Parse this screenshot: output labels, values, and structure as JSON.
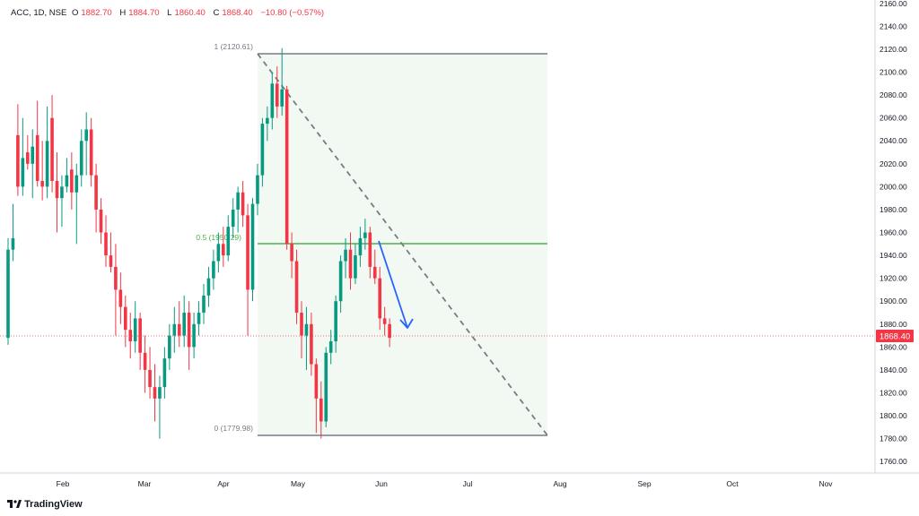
{
  "header": {
    "symbol": "ACC, 1D, NSE",
    "open_label": "O",
    "open": "1882.70",
    "high_label": "H",
    "high": "1884.70",
    "low_label": "L",
    "low": "1860.40",
    "close_label": "C",
    "close": "1868.40",
    "change": "−10.80 (−0.57%)"
  },
  "branding": {
    "logo_text": "TradingView"
  },
  "colors": {
    "up": "#089981",
    "down": "#f23645",
    "fib_zone": "#e8f5e9",
    "fib_line": "#4caf50",
    "arrow": "#2962ff",
    "price_tag": "#f23645"
  },
  "chart_data": {
    "type": "candlestick",
    "ylim": [
      1750,
      2163
    ],
    "y_ticks": [
      1760,
      1780,
      1800,
      1820,
      1840,
      1860,
      1880,
      1900,
      1920,
      1940,
      1960,
      1980,
      2000,
      2020,
      2040,
      2060,
      2080,
      2100,
      2120,
      2140,
      2160
    ],
    "x_ticks": [
      "Feb",
      "Mar",
      "Apr",
      "May",
      "Jun",
      "Jul",
      "Aug",
      "Sep",
      "Oct",
      "Nov"
    ],
    "last_price": "1868.40",
    "fib_levels": [
      {
        "label": "1 (2120.61)",
        "value": 2120.61
      },
      {
        "label": "0.5 (1950.29)",
        "value": 1950.29
      },
      {
        "label": "0 (1779.98)",
        "value": 1779.98
      }
    ],
    "candles": [
      {
        "o": 1868,
        "h": 1955,
        "l": 1862,
        "c": 1945
      },
      {
        "o": 1945,
        "h": 1985,
        "l": 1935,
        "c": 1955
      },
      {
        "o": 2045,
        "h": 2072,
        "l": 1992,
        "c": 2000
      },
      {
        "o": 2000,
        "h": 2060,
        "l": 1992,
        "c": 2025
      },
      {
        "o": 2030,
        "h": 2045,
        "l": 2015,
        "c": 2020
      },
      {
        "o": 2020,
        "h": 2050,
        "l": 1990,
        "c": 2035
      },
      {
        "o": 2045,
        "h": 2075,
        "l": 2000,
        "c": 2005
      },
      {
        "o": 2005,
        "h": 2040,
        "l": 1988,
        "c": 2000
      },
      {
        "o": 2000,
        "h": 2070,
        "l": 1990,
        "c": 2040
      },
      {
        "o": 2060,
        "h": 2080,
        "l": 1995,
        "c": 2005
      },
      {
        "o": 2005,
        "h": 2030,
        "l": 1960,
        "c": 1990
      },
      {
        "o": 1990,
        "h": 2010,
        "l": 1965,
        "c": 2000
      },
      {
        "o": 2000,
        "h": 2025,
        "l": 1995,
        "c": 2010
      },
      {
        "o": 2015,
        "h": 2030,
        "l": 1980,
        "c": 1995
      },
      {
        "o": 1995,
        "h": 2020,
        "l": 1950,
        "c": 2010
      },
      {
        "o": 2010,
        "h": 2050,
        "l": 2000,
        "c": 2040
      },
      {
        "o": 2040,
        "h": 2065,
        "l": 2010,
        "c": 2050
      },
      {
        "o": 2050,
        "h": 2060,
        "l": 2000,
        "c": 2010
      },
      {
        "o": 2010,
        "h": 2020,
        "l": 1960,
        "c": 1980
      },
      {
        "o": 1980,
        "h": 1990,
        "l": 1950,
        "c": 1960
      },
      {
        "o": 1960,
        "h": 1975,
        "l": 1930,
        "c": 1940
      },
      {
        "o": 1940,
        "h": 1960,
        "l": 1925,
        "c": 1930
      },
      {
        "o": 1930,
        "h": 1950,
        "l": 1870,
        "c": 1910
      },
      {
        "o": 1910,
        "h": 1925,
        "l": 1880,
        "c": 1895
      },
      {
        "o": 1895,
        "h": 1905,
        "l": 1860,
        "c": 1875
      },
      {
        "o": 1875,
        "h": 1890,
        "l": 1850,
        "c": 1865
      },
      {
        "o": 1865,
        "h": 1900,
        "l": 1855,
        "c": 1885
      },
      {
        "o": 1885,
        "h": 1890,
        "l": 1840,
        "c": 1855
      },
      {
        "o": 1855,
        "h": 1870,
        "l": 1820,
        "c": 1840
      },
      {
        "o": 1840,
        "h": 1860,
        "l": 1815,
        "c": 1825
      },
      {
        "o": 1825,
        "h": 1845,
        "l": 1795,
        "c": 1815
      },
      {
        "o": 1815,
        "h": 1835,
        "l": 1780,
        "c": 1825
      },
      {
        "o": 1825,
        "h": 1860,
        "l": 1815,
        "c": 1850
      },
      {
        "o": 1850,
        "h": 1880,
        "l": 1840,
        "c": 1870
      },
      {
        "o": 1870,
        "h": 1895,
        "l": 1855,
        "c": 1880
      },
      {
        "o": 1880,
        "h": 1900,
        "l": 1860,
        "c": 1870
      },
      {
        "o": 1870,
        "h": 1905,
        "l": 1860,
        "c": 1890
      },
      {
        "o": 1890,
        "h": 1900,
        "l": 1840,
        "c": 1860
      },
      {
        "o": 1860,
        "h": 1890,
        "l": 1850,
        "c": 1880
      },
      {
        "o": 1880,
        "h": 1900,
        "l": 1870,
        "c": 1890
      },
      {
        "o": 1890,
        "h": 1915,
        "l": 1880,
        "c": 1905
      },
      {
        "o": 1905,
        "h": 1930,
        "l": 1895,
        "c": 1920
      },
      {
        "o": 1920,
        "h": 1945,
        "l": 1910,
        "c": 1935
      },
      {
        "o": 1935,
        "h": 1960,
        "l": 1925,
        "c": 1950
      },
      {
        "o": 1950,
        "h": 1965,
        "l": 1930,
        "c": 1940
      },
      {
        "o": 1940,
        "h": 1975,
        "l": 1935,
        "c": 1965
      },
      {
        "o": 1965,
        "h": 1990,
        "l": 1955,
        "c": 1980
      },
      {
        "o": 1980,
        "h": 2000,
        "l": 1960,
        "c": 1995
      },
      {
        "o": 1995,
        "h": 2005,
        "l": 1965,
        "c": 1975
      },
      {
        "o": 1975,
        "h": 1985,
        "l": 1870,
        "c": 1910
      },
      {
        "o": 1910,
        "h": 1990,
        "l": 1900,
        "c": 1985
      },
      {
        "o": 1985,
        "h": 2020,
        "l": 1975,
        "c": 2010
      },
      {
        "o": 2010,
        "h": 2060,
        "l": 2000,
        "c": 2055
      },
      {
        "o": 2055,
        "h": 2070,
        "l": 2040,
        "c": 2060
      },
      {
        "o": 2060,
        "h": 2100,
        "l": 2050,
        "c": 2090
      },
      {
        "o": 2090,
        "h": 2105,
        "l": 2060,
        "c": 2070
      },
      {
        "o": 2070,
        "h": 2121,
        "l": 2062,
        "c": 2085
      },
      {
        "o": 2085,
        "h": 2088,
        "l": 1945,
        "c": 1950
      },
      {
        "o": 1950,
        "h": 1960,
        "l": 1920,
        "c": 1935
      },
      {
        "o": 1935,
        "h": 1945,
        "l": 1880,
        "c": 1890
      },
      {
        "o": 1890,
        "h": 1900,
        "l": 1850,
        "c": 1870
      },
      {
        "o": 1870,
        "h": 1895,
        "l": 1840,
        "c": 1880
      },
      {
        "o": 1880,
        "h": 1890,
        "l": 1835,
        "c": 1845
      },
      {
        "o": 1845,
        "h": 1850,
        "l": 1785,
        "c": 1815
      },
      {
        "o": 1815,
        "h": 1830,
        "l": 1780,
        "c": 1795
      },
      {
        "o": 1795,
        "h": 1860,
        "l": 1790,
        "c": 1855
      },
      {
        "o": 1855,
        "h": 1875,
        "l": 1845,
        "c": 1865
      },
      {
        "o": 1865,
        "h": 1905,
        "l": 1855,
        "c": 1900
      },
      {
        "o": 1900,
        "h": 1940,
        "l": 1890,
        "c": 1935
      },
      {
        "o": 1935,
        "h": 1955,
        "l": 1920,
        "c": 1945
      },
      {
        "o": 1945,
        "h": 1960,
        "l": 1910,
        "c": 1920
      },
      {
        "o": 1920,
        "h": 1950,
        "l": 1915,
        "c": 1940
      },
      {
        "o": 1940,
        "h": 1965,
        "l": 1930,
        "c": 1955
      },
      {
        "o": 1955,
        "h": 1972,
        "l": 1945,
        "c": 1960
      },
      {
        "o": 1960,
        "h": 1965,
        "l": 1920,
        "c": 1930
      },
      {
        "o": 1930,
        "h": 1945,
        "l": 1915,
        "c": 1920
      },
      {
        "o": 1920,
        "h": 1930,
        "l": 1875,
        "c": 1885
      },
      {
        "o": 1885,
        "h": 1895,
        "l": 1870,
        "c": 1880
      },
      {
        "o": 1880,
        "h": 1885,
        "l": 1860,
        "c": 1868
      }
    ]
  }
}
